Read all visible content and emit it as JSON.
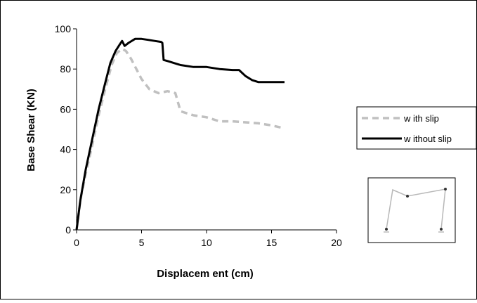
{
  "chart_data": {
    "type": "line",
    "title": "",
    "xlabel": "Displacem ent (cm)",
    "ylabel": "Base Shear (KN)",
    "xlim": [
      0,
      20
    ],
    "ylim": [
      0,
      100
    ],
    "x_ticks": [
      0,
      5,
      10,
      15,
      20
    ],
    "y_ticks": [
      0,
      20,
      40,
      60,
      80,
      100
    ],
    "grid": false,
    "legend_position": "right",
    "series": [
      {
        "name": "w ith slip",
        "color": "#c0c0c0",
        "style": "dashed",
        "points": [
          [
            0,
            0
          ],
          [
            0.3,
            15
          ],
          [
            0.7,
            28
          ],
          [
            1.2,
            42
          ],
          [
            1.7,
            57
          ],
          [
            2.2,
            70
          ],
          [
            2.7,
            82
          ],
          [
            3.1,
            88
          ],
          [
            3.5,
            90
          ],
          [
            3.8,
            89
          ],
          [
            4.2,
            85
          ],
          [
            4.6,
            80
          ],
          [
            5.0,
            75
          ],
          [
            5.6,
            70
          ],
          [
            6.3,
            68
          ],
          [
            7.0,
            69
          ],
          [
            7.6,
            68
          ],
          [
            8.0,
            59
          ],
          [
            9.0,
            57
          ],
          [
            10.0,
            56
          ],
          [
            11.0,
            54
          ],
          [
            12.0,
            54
          ],
          [
            13.0,
            53.5
          ],
          [
            14.0,
            53
          ],
          [
            15.0,
            52
          ],
          [
            16.0,
            50.5
          ]
        ]
      },
      {
        "name": "w ithout slip",
        "color": "#000000",
        "style": "solid",
        "points": [
          [
            0,
            0
          ],
          [
            0.3,
            15
          ],
          [
            0.7,
            30
          ],
          [
            1.2,
            45
          ],
          [
            1.7,
            60
          ],
          [
            2.2,
            73
          ],
          [
            2.6,
            83
          ],
          [
            3.0,
            89
          ],
          [
            3.3,
            92
          ],
          [
            3.5,
            94
          ],
          [
            3.7,
            91.5
          ],
          [
            4.0,
            93
          ],
          [
            4.5,
            95
          ],
          [
            5.0,
            95
          ],
          [
            5.5,
            94.5
          ],
          [
            6.0,
            94
          ],
          [
            6.5,
            93.5
          ],
          [
            6.6,
            93
          ],
          [
            6.7,
            84.5
          ],
          [
            7.0,
            84
          ],
          [
            8.0,
            82
          ],
          [
            9.0,
            81
          ],
          [
            10.0,
            81
          ],
          [
            11.0,
            80
          ],
          [
            12.0,
            79.5
          ],
          [
            12.5,
            79.5
          ],
          [
            13.0,
            76.5
          ],
          [
            13.5,
            74.5
          ],
          [
            14.0,
            73.5
          ],
          [
            15.0,
            73.5
          ],
          [
            16.0,
            73.5
          ]
        ]
      }
    ]
  },
  "inset": {
    "icon": "frame-structure-icon"
  }
}
